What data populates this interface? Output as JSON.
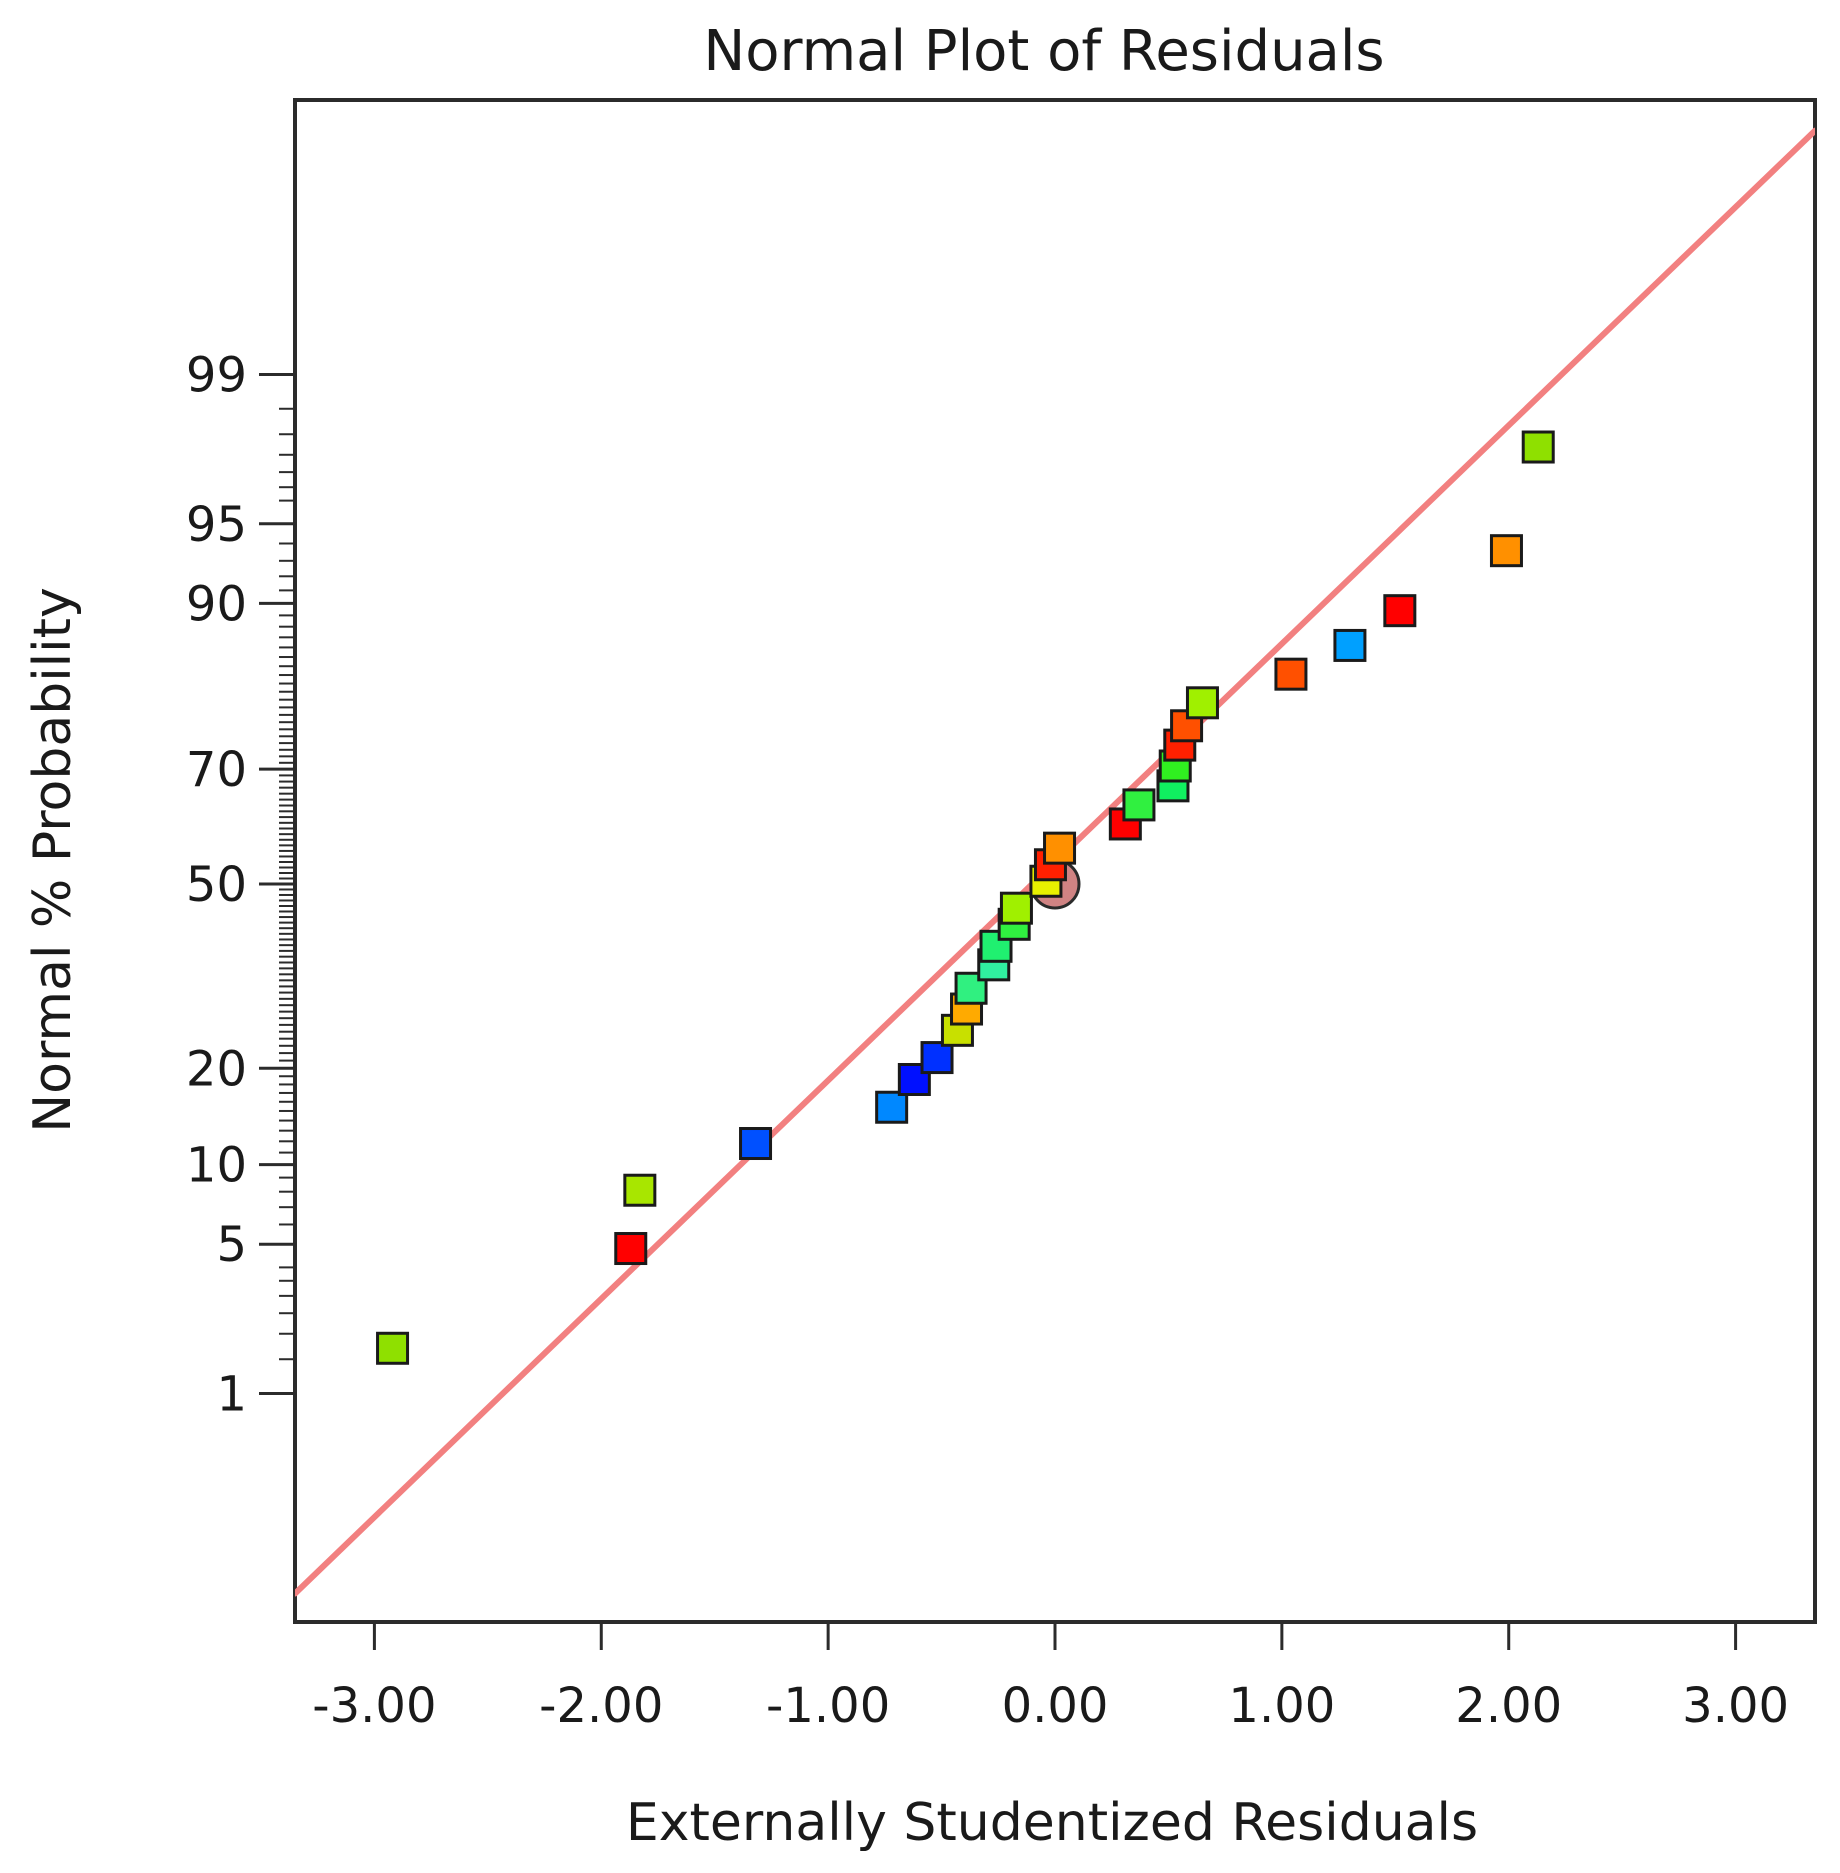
{
  "chart_data": {
    "type": "scatter",
    "title": "Normal Plot of Residuals",
    "xlabel": "Externally Studentized Residuals",
    "ylabel": "Normal % Probability",
    "xlim": [
      -3.35,
      3.35
    ],
    "x_ticks": [
      {
        "value": -3,
        "label": "-3.00"
      },
      {
        "value": -2,
        "label": "-2.00"
      },
      {
        "value": -1,
        "label": "-1.00"
      },
      {
        "value": 0,
        "label": "0.00"
      },
      {
        "value": 1,
        "label": "1.00"
      },
      {
        "value": 2,
        "label": "2.00"
      },
      {
        "value": 3,
        "label": "3.00"
      }
    ],
    "y_ticks": [
      {
        "value": 1,
        "label": "1"
      },
      {
        "value": 5,
        "label": "5"
      },
      {
        "value": 10,
        "label": "10"
      },
      {
        "value": 20,
        "label": "20"
      },
      {
        "value": 50,
        "label": "50"
      },
      {
        "value": 70,
        "label": "70"
      },
      {
        "value": 90,
        "label": "90"
      },
      {
        "value": 95,
        "label": "95"
      },
      {
        "value": 99,
        "label": "99"
      }
    ],
    "fit_line": {
      "x": [
        -3.35,
        3.35
      ],
      "z": [
        -3.24,
        3.44
      ],
      "color": "#f28080"
    },
    "center_marker": {
      "x": 0.0,
      "y": 50
    },
    "points": [
      {
        "x": -2.92,
        "y": 1.7,
        "color": "#8fe000"
      },
      {
        "x": -1.87,
        "y": 4.8,
        "color": "#ff0000"
      },
      {
        "x": -1.83,
        "y": 8.1,
        "color": "#a8e600"
      },
      {
        "x": -1.32,
        "y": 11.8,
        "color": "#0050ff"
      },
      {
        "x": -0.72,
        "y": 15.4,
        "color": "#0088ff"
      },
      {
        "x": -0.62,
        "y": 18.6,
        "color": "#0010ff"
      },
      {
        "x": -0.52,
        "y": 21.4,
        "color": "#0030ff"
      },
      {
        "x": -0.43,
        "y": 25.2,
        "color": "#c8e000"
      },
      {
        "x": -0.39,
        "y": 28.4,
        "color": "#ffaa00"
      },
      {
        "x": -0.37,
        "y": 31.7,
        "color": "#30f080"
      },
      {
        "x": -0.27,
        "y": 35.6,
        "color": "#30f0a0"
      },
      {
        "x": -0.26,
        "y": 38.8,
        "color": "#20f070"
      },
      {
        "x": -0.18,
        "y": 42.7,
        "color": "#30f040"
      },
      {
        "x": -0.17,
        "y": 45.6,
        "color": "#a0f000"
      },
      {
        "x": -0.04,
        "y": 50.5,
        "color": "#e8f000"
      },
      {
        "x": -0.02,
        "y": 53.5,
        "color": "#ff2000"
      },
      {
        "x": 0.02,
        "y": 56.5,
        "color": "#ff9000"
      },
      {
        "x": 0.31,
        "y": 60.8,
        "color": "#ff0000"
      },
      {
        "x": 0.37,
        "y": 64.1,
        "color": "#30f040"
      },
      {
        "x": 0.52,
        "y": 67.3,
        "color": "#10f060"
      },
      {
        "x": 0.53,
        "y": 70.5,
        "color": "#30f020"
      },
      {
        "x": 0.55,
        "y": 73.7,
        "color": "#ff2000"
      },
      {
        "x": 0.58,
        "y": 76.5,
        "color": "#ff5000"
      },
      {
        "x": 0.65,
        "y": 79.6,
        "color": "#a0f000"
      },
      {
        "x": 1.04,
        "y": 83.1,
        "color": "#ff5000"
      },
      {
        "x": 1.3,
        "y": 86.2,
        "color": "#00a0ff"
      },
      {
        "x": 1.52,
        "y": 89.4,
        "color": "#ff0000"
      },
      {
        "x": 1.99,
        "y": 93.6,
        "color": "#ff9000"
      },
      {
        "x": 2.13,
        "y": 97.7,
        "color": "#8fe000"
      }
    ]
  }
}
